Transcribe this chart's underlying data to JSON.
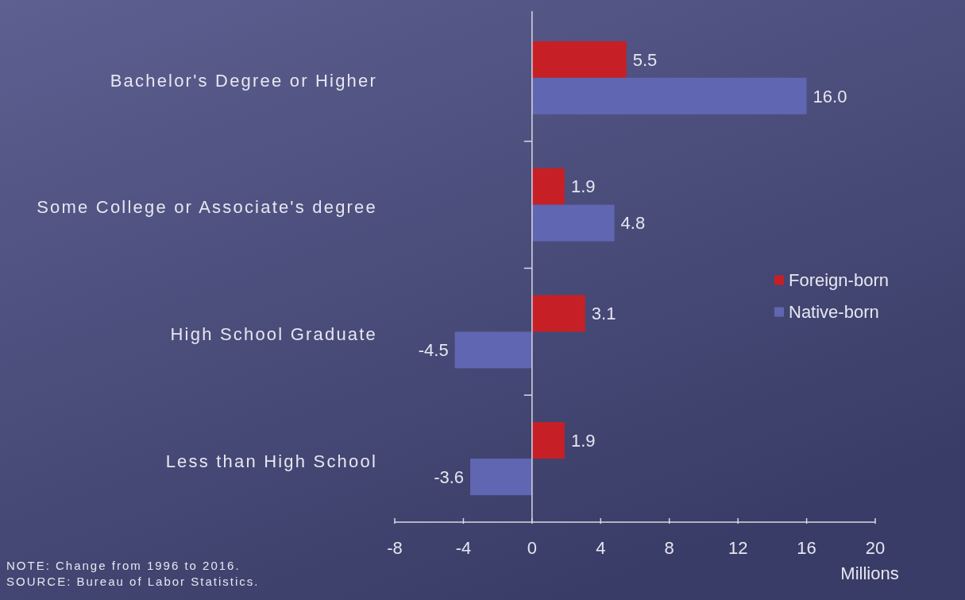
{
  "chart_data": {
    "type": "bar",
    "orientation": "horizontal",
    "categories": [
      "Bachelor's Degree or Higher",
      "Some College or Associate's degree",
      "High School Graduate",
      "Less than High School"
    ],
    "series": [
      {
        "name": "Foreign-born",
        "color": "#c62026",
        "values": [
          5.5,
          1.9,
          3.1,
          1.9
        ],
        "value_labels": [
          "5.5",
          "1.9",
          "3.1",
          "1.9"
        ]
      },
      {
        "name": "Native-born",
        "color": "#6166b2",
        "values": [
          16.0,
          4.8,
          -4.5,
          -3.6
        ],
        "value_labels": [
          "16.0",
          "4.8",
          "-4.5",
          "-3.6"
        ]
      }
    ],
    "xlim": [
      -8,
      20
    ],
    "xticks": [
      -8,
      -4,
      0,
      4,
      8,
      12,
      16,
      20
    ],
    "xlabel": "Millions",
    "legend": "right",
    "annotations": [
      "NOTE: Change from 1996 to 2016.",
      "SOURCE: Bureau of Labor Statistics."
    ]
  }
}
